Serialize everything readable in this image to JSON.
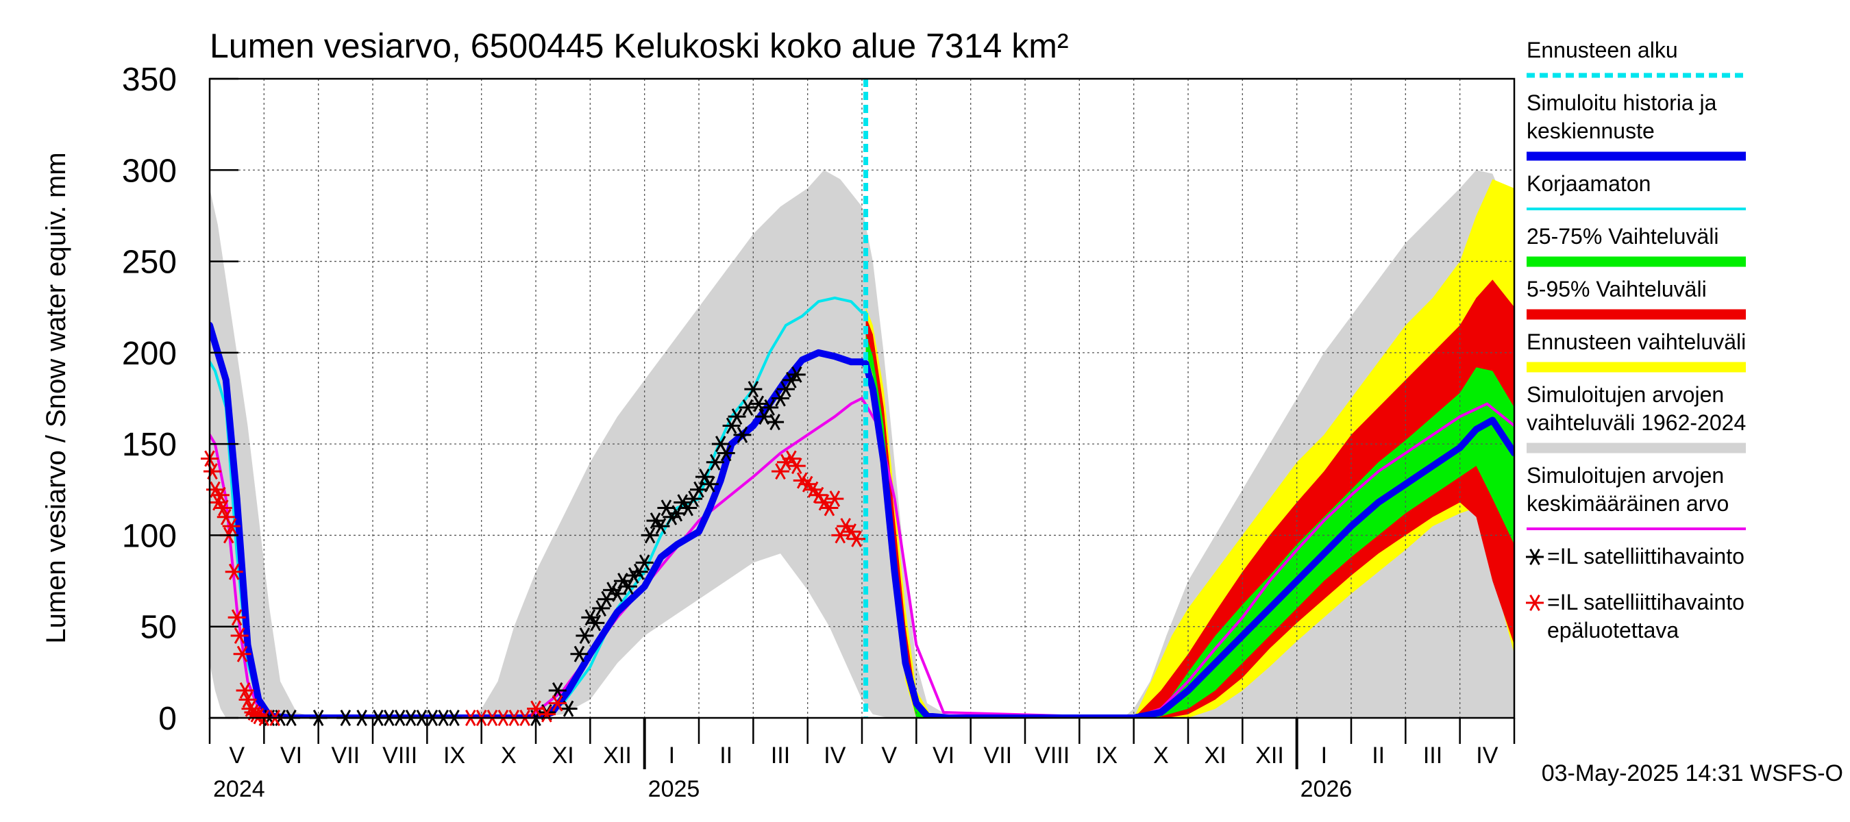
{
  "chart_data": {
    "type": "line",
    "title": "Lumen vesiarvo, 6500445 Kelukoski koko alue 7314 km²",
    "ylabel": "Lumen vesiarvo / Snow water equiv.    mm",
    "ylim": [
      0,
      350
    ],
    "yticks": [
      0,
      50,
      100,
      150,
      200,
      250,
      300,
      350
    ],
    "x_unit": "months since 2024-05-01",
    "xlim": [
      0,
      24
    ],
    "forecast_start": 12.07,
    "month_labels": [
      {
        "label": "V",
        "x": 0.5
      },
      {
        "label": "VI",
        "x": 1.5
      },
      {
        "label": "VII",
        "x": 2.5
      },
      {
        "label": "VIII",
        "x": 3.5
      },
      {
        "label": "IX",
        "x": 4.5
      },
      {
        "label": "X",
        "x": 5.5
      },
      {
        "label": "XI",
        "x": 6.5
      },
      {
        "label": "XII",
        "x": 7.5
      },
      {
        "label": "I",
        "x": 8.5
      },
      {
        "label": "II",
        "x": 9.5
      },
      {
        "label": "III",
        "x": 10.5
      },
      {
        "label": "IV",
        "x": 11.5
      },
      {
        "label": "V",
        "x": 12.5
      },
      {
        "label": "VI",
        "x": 13.5
      },
      {
        "label": "VII",
        "x": 14.5
      },
      {
        "label": "VIII",
        "x": 15.5
      },
      {
        "label": "IX",
        "x": 16.5
      },
      {
        "label": "X",
        "x": 17.5
      },
      {
        "label": "XI",
        "x": 18.5
      },
      {
        "label": "XII",
        "x": 19.5
      },
      {
        "label": "I",
        "x": 20.5
      },
      {
        "label": "II",
        "x": 21.5
      },
      {
        "label": "III",
        "x": 22.5
      },
      {
        "label": "IV",
        "x": 23.5
      }
    ],
    "year_labels": [
      {
        "label": "2024",
        "x": 0
      },
      {
        "label": "2025",
        "x": 8
      },
      {
        "label": "2026",
        "x": 20
      }
    ],
    "year_ticks": [
      8,
      20
    ],
    "legend": [
      {
        "label": "Ennusteen alku",
        "color": "#00e5ee",
        "style": "dashed"
      },
      {
        "label": "Simuloitu historia ja keskiennuste",
        "color": "#0000ee",
        "style": "thick"
      },
      {
        "label": "Korjaamaton",
        "color": "#00e5ee",
        "style": "line"
      },
      {
        "label": "25-75% Vaihteluväli",
        "color": "#00ee00",
        "style": "band"
      },
      {
        "label": "5-95% Vaihteluväli",
        "color": "#ee0000",
        "style": "band"
      },
      {
        "label": "Ennusteen vaihteluväli",
        "color": "#ffff00",
        "style": "band"
      },
      {
        "label": "Simuloitujen arvojen vaihteluväli 1962-2024",
        "color": "#d3d3d3",
        "style": "band"
      },
      {
        "label": "Simuloitujen arvojen keskimääräinen arvo",
        "color": "#ee00ee",
        "style": "line"
      },
      {
        "label": "=IL satelliittihavainto",
        "color": "#000000",
        "style": "marker"
      },
      {
        "label": "=IL satelliittihavainto epäluotettava",
        "color": "#ee0000",
        "style": "marker"
      }
    ],
    "series": [
      {
        "name": "Simuloitujen arvojen vaihteluväli 1962-2024 (ylä)",
        "color": "#d3d3d3",
        "x": [
          0,
          0.15,
          0.3,
          0.5,
          0.7,
          0.9,
          1.1,
          1.3,
          1.6,
          2,
          4,
          4.8,
          5,
          5.3,
          5.6,
          6,
          6.5,
          7,
          7.5,
          8,
          8.5,
          9,
          9.5,
          10,
          10.5,
          11,
          11.3,
          11.6,
          12,
          12.2,
          12.4,
          12.6,
          12.8,
          13,
          13.2,
          13.6,
          14,
          16,
          16.8,
          17,
          17.3,
          17.6,
          18,
          18.5,
          19,
          19.5,
          20,
          20.5,
          21,
          21.5,
          22,
          22.5,
          23,
          23.3,
          23.6,
          24
        ],
        "values": [
          290,
          270,
          240,
          200,
          160,
          110,
          60,
          20,
          3,
          0,
          0,
          0,
          5,
          20,
          50,
          80,
          110,
          140,
          165,
          185,
          205,
          225,
          245,
          265,
          280,
          290,
          300,
          295,
          280,
          250,
          200,
          140,
          80,
          30,
          8,
          1,
          0,
          0,
          0,
          5,
          20,
          45,
          75,
          100,
          125,
          150,
          175,
          200,
          220,
          240,
          260,
          275,
          290,
          300,
          298,
          270
        ]
      },
      {
        "name": "Simuloitujen arvojen vaihteluväli 1962-2024 (ala)",
        "color": "#d3d3d3",
        "x": [
          0,
          0.1,
          0.2,
          0.3,
          0.5,
          1,
          6,
          6.5,
          7,
          7.5,
          8,
          8.5,
          9,
          9.5,
          10,
          10.5,
          11,
          11.4,
          11.7,
          12,
          12.2,
          12.5,
          24
        ],
        "values": [
          30,
          15,
          5,
          0,
          0,
          0,
          0,
          2,
          10,
          30,
          45,
          55,
          65,
          75,
          85,
          90,
          70,
          50,
          30,
          10,
          2,
          0,
          0
        ]
      },
      {
        "name": "Simuloitujen arvojen keskimääräinen arvo",
        "color": "#ee00ee",
        "x": [
          0,
          0.1,
          0.3,
          0.5,
          0.7,
          0.9,
          1.1,
          1.5,
          5.8,
          6,
          6.5,
          7,
          7.5,
          8,
          8.5,
          9,
          9.5,
          10,
          10.5,
          11,
          11.5,
          11.8,
          12,
          12.3,
          12.6,
          13,
          13.5,
          17,
          17.5,
          18,
          18.5,
          19,
          19.5,
          20,
          20.5,
          21,
          21.5,
          22,
          22.5,
          23,
          23.5,
          24
        ],
        "values": [
          155,
          150,
          120,
          60,
          20,
          5,
          1,
          0,
          0,
          3,
          15,
          35,
          55,
          72,
          90,
          108,
          120,
          132,
          145,
          155,
          165,
          172,
          175,
          160,
          120,
          40,
          3,
          0,
          5,
          20,
          38,
          55,
          75,
          92,
          108,
          122,
          135,
          145,
          155,
          165,
          172,
          160
        ]
      },
      {
        "name": "Korjaamaton",
        "color": "#00e5ee",
        "x": [
          0,
          0.1,
          0.3,
          0.5,
          0.7,
          0.9,
          1.1,
          1.5,
          6,
          6.5,
          7,
          7.5,
          8,
          8.3,
          8.6,
          9,
          9.3,
          9.6,
          10,
          10.3,
          10.6,
          10.9,
          11.2,
          11.5,
          11.8,
          12,
          12.07
        ],
        "values": [
          195,
          190,
          170,
          90,
          30,
          8,
          1,
          0,
          0,
          8,
          28,
          60,
          80,
          100,
          115,
          120,
          145,
          165,
          180,
          200,
          215,
          220,
          228,
          230,
          228,
          222,
          222
        ]
      },
      {
        "name": "Simuloitu historia ja keskiennuste",
        "color": "#0000ee",
        "x": [
          0,
          0.1,
          0.3,
          0.5,
          0.7,
          0.9,
          1.1,
          1.5,
          6,
          6.3,
          6.6,
          7,
          7.5,
          8,
          8.3,
          8.6,
          9,
          9.2,
          9.4,
          9.6,
          10,
          10.3,
          10.6,
          10.9,
          11.2,
          11.5,
          11.8,
          12,
          12.07,
          12.2,
          12.4,
          12.6,
          12.8,
          13,
          13.2,
          13.6,
          17,
          17.5,
          18,
          18.5,
          19,
          19.5,
          20,
          20.5,
          21,
          21.5,
          22,
          22.5,
          23,
          23.3,
          23.6,
          24
        ],
        "values": [
          215,
          205,
          185,
          120,
          40,
          10,
          1,
          0,
          0,
          3,
          15,
          35,
          58,
          72,
          88,
          95,
          102,
          115,
          130,
          150,
          160,
          172,
          185,
          196,
          200,
          198,
          195,
          195,
          194,
          180,
          140,
          80,
          30,
          8,
          1,
          0,
          0,
          3,
          15,
          30,
          45,
          60,
          75,
          90,
          105,
          118,
          128,
          138,
          148,
          158,
          163,
          145
        ]
      },
      {
        "name": "Ennusteen vaihteluväli (ylä)",
        "color": "#ffff00",
        "x": [
          12.07,
          12.2,
          12.4,
          12.6,
          12.8,
          13,
          13.3,
          17,
          17.4,
          17.7,
          18,
          18.5,
          19,
          19.5,
          20,
          20.5,
          21,
          21.5,
          22,
          22.5,
          23,
          23.3,
          23.6,
          24
        ],
        "values": [
          225,
          215,
          180,
          120,
          60,
          15,
          0,
          0,
          25,
          45,
          60,
          80,
          100,
          120,
          140,
          155,
          175,
          195,
          215,
          230,
          250,
          275,
          295,
          290
        ]
      },
      {
        "name": "Ennusteen vaihteluväli (ala)",
        "color": "#ffff00",
        "x": [
          12.07,
          12.2,
          12.4,
          12.6,
          12.8,
          13,
          17,
          18,
          18.5,
          19,
          19.5,
          20,
          20.5,
          21,
          21.5,
          22,
          22.5,
          23,
          23.3,
          23.6,
          24
        ],
        "values": [
          200,
          185,
          140,
          70,
          20,
          0,
          0,
          0,
          5,
          15,
          28,
          42,
          55,
          68,
          80,
          92,
          105,
          112,
          115,
          80,
          35
        ]
      },
      {
        "name": "5-95% Vaihteluväli (ylä)",
        "color": "#ee0000",
        "x": [
          12.07,
          12.2,
          12.4,
          12.6,
          12.8,
          13,
          13.3,
          17,
          17.5,
          18,
          18.5,
          19,
          19.5,
          20,
          20.5,
          21,
          21.5,
          22,
          22.5,
          23,
          23.3,
          23.6,
          24
        ],
        "values": [
          220,
          210,
          170,
          110,
          50,
          10,
          0,
          0,
          15,
          35,
          58,
          80,
          100,
          118,
          135,
          155,
          170,
          185,
          200,
          215,
          230,
          240,
          225
        ]
      },
      {
        "name": "5-95% Vaihteluväli (ala)",
        "color": "#ee0000",
        "x": [
          12.07,
          12.2,
          12.4,
          12.6,
          12.8,
          13,
          17.6,
          18,
          18.5,
          19,
          19.5,
          20,
          20.5,
          21,
          21.5,
          22,
          22.5,
          23,
          23.3,
          23.6,
          24
        ],
        "values": [
          205,
          190,
          145,
          80,
          25,
          0,
          0,
          2,
          10,
          22,
          38,
          52,
          65,
          78,
          90,
          100,
          110,
          118,
          110,
          75,
          40
        ]
      },
      {
        "name": "25-75% Vaihteluväli (ylä)",
        "color": "#00ee00",
        "x": [
          12.07,
          12.2,
          12.4,
          12.6,
          12.8,
          13,
          13.3,
          17.2,
          17.6,
          18,
          18.5,
          19,
          19.5,
          20,
          20.5,
          21,
          21.5,
          22,
          22.5,
          23,
          23.3,
          23.6,
          24
        ],
        "values": [
          210,
          198,
          160,
          95,
          35,
          5,
          0,
          0,
          8,
          25,
          45,
          62,
          78,
          95,
          110,
          125,
          140,
          152,
          165,
          178,
          192,
          190,
          170
        ]
      },
      {
        "name": "25-75% Vaihteluväli (ala)",
        "color": "#00ee00",
        "x": [
          12.07,
          12.2,
          12.4,
          12.6,
          12.8,
          13,
          17.4,
          18,
          18.5,
          19,
          19.5,
          20,
          20.5,
          21,
          21.5,
          22,
          22.5,
          23,
          23.3,
          23.6,
          24
        ],
        "values": [
          200,
          188,
          145,
          80,
          25,
          0,
          0,
          5,
          15,
          30,
          45,
          60,
          75,
          88,
          100,
          112,
          122,
          132,
          138,
          120,
          95
        ]
      },
      {
        "name": "=IL satelliittihavainto",
        "color": "#000000",
        "type": "scatter",
        "x": [
          1.1,
          1.3,
          1.5,
          2.0,
          2.5,
          2.8,
          3.1,
          3.3,
          3.5,
          3.7,
          3.9,
          4.1,
          4.3,
          4.5,
          6.0,
          6.2,
          6.4,
          6.6,
          6.8,
          6.9,
          7.0,
          7.1,
          7.2,
          7.3,
          7.4,
          7.5,
          7.6,
          7.7,
          7.8,
          7.9,
          8.0,
          8.1,
          8.2,
          8.3,
          8.4,
          8.5,
          8.6,
          8.7,
          8.8,
          8.9,
          9.0,
          9.1,
          9.2,
          9.3,
          9.4,
          9.5,
          9.6,
          9.7,
          9.8,
          9.9,
          10.0,
          10.1,
          10.2,
          10.3,
          10.4,
          10.5,
          10.6,
          10.7,
          10.8
        ],
        "values": [
          0,
          0,
          0,
          0,
          0,
          0,
          0,
          0,
          0,
          0,
          0,
          0,
          0,
          0,
          0,
          3,
          15,
          5,
          35,
          45,
          55,
          52,
          60,
          65,
          70,
          68,
          75,
          72,
          78,
          80,
          85,
          100,
          108,
          105,
          115,
          110,
          112,
          118,
          115,
          120,
          125,
          132,
          128,
          140,
          150,
          145,
          160,
          165,
          155,
          170,
          180,
          172,
          165,
          170,
          162,
          175,
          180,
          185,
          188
        ]
      },
      {
        "name": "=IL satelliittihavainto epäluotettava",
        "color": "#ee0000",
        "type": "scatter",
        "x": [
          0.0,
          0.05,
          0.1,
          0.15,
          0.2,
          0.25,
          0.3,
          0.35,
          0.4,
          0.45,
          0.5,
          0.55,
          0.6,
          0.65,
          0.7,
          0.75,
          0.8,
          0.85,
          0.9,
          1.0,
          1.2,
          4.8,
          5.0,
          5.2,
          5.4,
          5.6,
          5.8,
          6.0,
          6.2,
          6.4,
          10.5,
          10.6,
          10.7,
          10.8,
          10.9,
          11.0,
          11.1,
          11.2,
          11.3,
          11.4,
          11.5,
          11.6,
          11.7,
          11.8,
          11.9
        ],
        "values": [
          142,
          135,
          125,
          118,
          122,
          115,
          110,
          100,
          105,
          80,
          55,
          45,
          35,
          15,
          10,
          5,
          3,
          2,
          1,
          0,
          0,
          0,
          0,
          0,
          0,
          0,
          0,
          5,
          2,
          8,
          135,
          140,
          142,
          138,
          130,
          128,
          125,
          122,
          118,
          115,
          120,
          100,
          105,
          102,
          98
        ]
      }
    ],
    "timestamp": "03-May-2025 14:31 WSFS-O"
  }
}
